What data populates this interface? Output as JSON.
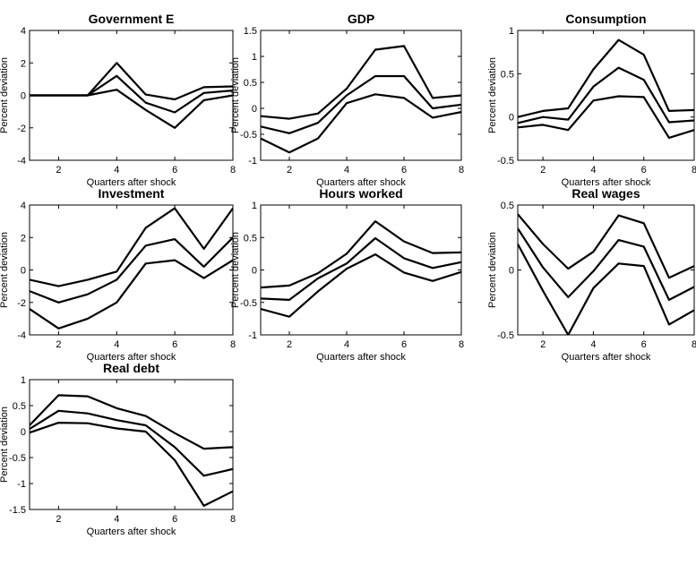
{
  "chart_data": [
    {
      "type": "line",
      "title": "Government E",
      "xlabel": "Quarters after shock",
      "ylabel": "Percent deviation",
      "x": [
        1,
        2,
        3,
        4,
        5,
        6,
        7,
        8
      ],
      "xlim": [
        1,
        8
      ],
      "ylim": [
        -4,
        4
      ],
      "xticks": [
        2,
        4,
        6,
        8
      ],
      "yticks": [
        -4,
        -2,
        0,
        2,
        4
      ],
      "ytick_labels": [
        "-4",
        "-2",
        "0",
        "2",
        "4"
      ],
      "grid": false,
      "series": [
        {
          "values": [
            0,
            0,
            0,
            2.0,
            0.05,
            -0.25,
            0.5,
            0.55
          ]
        },
        {
          "values": [
            0,
            0,
            0,
            1.2,
            -0.45,
            -1.05,
            0.15,
            0.3
          ]
        },
        {
          "values": [
            0,
            0,
            0,
            0.35,
            -0.9,
            -2.0,
            -0.3,
            0.0
          ]
        }
      ]
    },
    {
      "type": "line",
      "title": "GDP",
      "xlabel": "Quarters after shock",
      "ylabel": "Percent deviation",
      "x": [
        1,
        2,
        3,
        4,
        5,
        6,
        7,
        8
      ],
      "xlim": [
        1,
        8
      ],
      "ylim": [
        -1,
        1.5
      ],
      "xticks": [
        2,
        4,
        6,
        8
      ],
      "yticks": [
        -1,
        -0.5,
        0,
        0.5,
        1,
        1.5
      ],
      "ytick_labels": [
        "-1",
        "-0.5",
        "0",
        "0.5",
        "1",
        "1.5"
      ],
      "grid": false,
      "series": [
        {
          "values": [
            -0.15,
            -0.2,
            -0.1,
            0.38,
            1.13,
            1.2,
            0.2,
            0.25
          ]
        },
        {
          "values": [
            -0.35,
            -0.48,
            -0.28,
            0.25,
            0.62,
            0.62,
            0.0,
            0.07
          ]
        },
        {
          "values": [
            -0.58,
            -0.85,
            -0.58,
            0.1,
            0.27,
            0.2,
            -0.18,
            -0.07
          ]
        }
      ]
    },
    {
      "type": "line",
      "title": "Consumption",
      "xlabel": "Quarters after shock",
      "ylabel": "Percent deviation",
      "x": [
        1,
        2,
        3,
        4,
        5,
        6,
        7,
        8
      ],
      "xlim": [
        1,
        8
      ],
      "ylim": [
        -0.5,
        1
      ],
      "xticks": [
        2,
        4,
        6,
        8
      ],
      "yticks": [
        -0.5,
        0,
        0.5,
        1
      ],
      "ytick_labels": [
        "-0.5",
        "0",
        "0.5",
        "1"
      ],
      "grid": false,
      "series": [
        {
          "values": [
            0.0,
            0.07,
            0.1,
            0.55,
            0.89,
            0.72,
            0.07,
            0.08
          ]
        },
        {
          "values": [
            -0.07,
            0.0,
            -0.03,
            0.35,
            0.57,
            0.43,
            -0.06,
            -0.04
          ]
        },
        {
          "values": [
            -0.12,
            -0.09,
            -0.15,
            0.19,
            0.24,
            0.23,
            -0.24,
            -0.15
          ]
        }
      ]
    },
    {
      "type": "line",
      "title": "Investment",
      "xlabel": "Quarters after shock",
      "ylabel": "Percent deviation",
      "x": [
        1,
        2,
        3,
        4,
        5,
        6,
        7,
        8
      ],
      "xlim": [
        1,
        8
      ],
      "ylim": [
        -4,
        4
      ],
      "xticks": [
        2,
        4,
        6,
        8
      ],
      "yticks": [
        -4,
        -2,
        0,
        2,
        4
      ],
      "ytick_labels": [
        "-4",
        "-2",
        "0",
        "2",
        "4"
      ],
      "grid": false,
      "series": [
        {
          "values": [
            -0.6,
            -1.0,
            -0.6,
            -0.1,
            2.6,
            3.8,
            1.3,
            3.8
          ]
        },
        {
          "values": [
            -1.3,
            -2.0,
            -1.5,
            -0.6,
            1.5,
            1.9,
            0.2,
            2.0
          ]
        },
        {
          "values": [
            -2.4,
            -3.6,
            -3.0,
            -2.0,
            0.4,
            0.6,
            -0.5,
            0.6
          ]
        }
      ]
    },
    {
      "type": "line",
      "title": "Hours worked",
      "xlabel": "Quarters after shock",
      "ylabel": "Percent deviation",
      "x": [
        1,
        2,
        3,
        4,
        5,
        6,
        7,
        8
      ],
      "xlim": [
        1,
        8
      ],
      "ylim": [
        -1,
        1
      ],
      "xticks": [
        2,
        4,
        6,
        8
      ],
      "yticks": [
        -1,
        -0.5,
        0,
        0.5,
        1
      ],
      "ytick_labels": [
        "-1",
        "-0.5",
        "0",
        "0.5",
        "1"
      ],
      "grid": false,
      "series": [
        {
          "values": [
            -0.27,
            -0.24,
            -0.05,
            0.25,
            0.75,
            0.44,
            0.26,
            0.27
          ]
        },
        {
          "values": [
            -0.44,
            -0.46,
            -0.13,
            0.1,
            0.49,
            0.18,
            0.03,
            0.12
          ]
        },
        {
          "values": [
            -0.6,
            -0.72,
            -0.33,
            0.02,
            0.24,
            -0.04,
            -0.17,
            -0.03
          ]
        }
      ]
    },
    {
      "type": "line",
      "title": "Real wages",
      "xlabel": "Quarters after shock",
      "ylabel": "Percent deviation",
      "x": [
        1,
        2,
        3,
        4,
        5,
        6,
        7,
        8
      ],
      "xlim": [
        1,
        8
      ],
      "ylim": [
        -0.5,
        0.5
      ],
      "xticks": [
        2,
        4,
        6,
        8
      ],
      "yticks": [
        -0.5,
        0,
        0.5
      ],
      "ytick_labels": [
        "-0.5",
        "0",
        "0.5"
      ],
      "grid": false,
      "series": [
        {
          "values": [
            0.43,
            0.2,
            0.01,
            0.14,
            0.42,
            0.36,
            -0.06,
            0.03
          ]
        },
        {
          "values": [
            0.32,
            0.02,
            -0.21,
            -0.01,
            0.23,
            0.18,
            -0.23,
            -0.13
          ]
        },
        {
          "values": [
            0.2,
            -0.16,
            -0.5,
            -0.14,
            0.05,
            0.03,
            -0.42,
            -0.31
          ]
        }
      ]
    },
    {
      "type": "line",
      "title": "Real debt",
      "xlabel": "Quarters after shock",
      "ylabel": "Percent deviation",
      "x": [
        1,
        2,
        3,
        4,
        5,
        6,
        7,
        8
      ],
      "xlim": [
        1,
        8
      ],
      "ylim": [
        -1.5,
        1
      ],
      "xticks": [
        2,
        4,
        6,
        8
      ],
      "yticks": [
        -1.5,
        -1,
        -0.5,
        0,
        0.5,
        1
      ],
      "ytick_labels": [
        "-1.5",
        "-1",
        "-0.5",
        "0",
        "0.5",
        "1"
      ],
      "grid": false,
      "series": [
        {
          "values": [
            0.12,
            0.7,
            0.68,
            0.45,
            0.3,
            -0.03,
            -0.33,
            -0.3
          ]
        },
        {
          "values": [
            0.05,
            0.4,
            0.35,
            0.22,
            0.12,
            -0.3,
            -0.85,
            -0.72
          ]
        },
        {
          "values": [
            -0.02,
            0.17,
            0.16,
            0.06,
            0.0,
            -0.55,
            -1.43,
            -1.15
          ]
        }
      ]
    }
  ]
}
